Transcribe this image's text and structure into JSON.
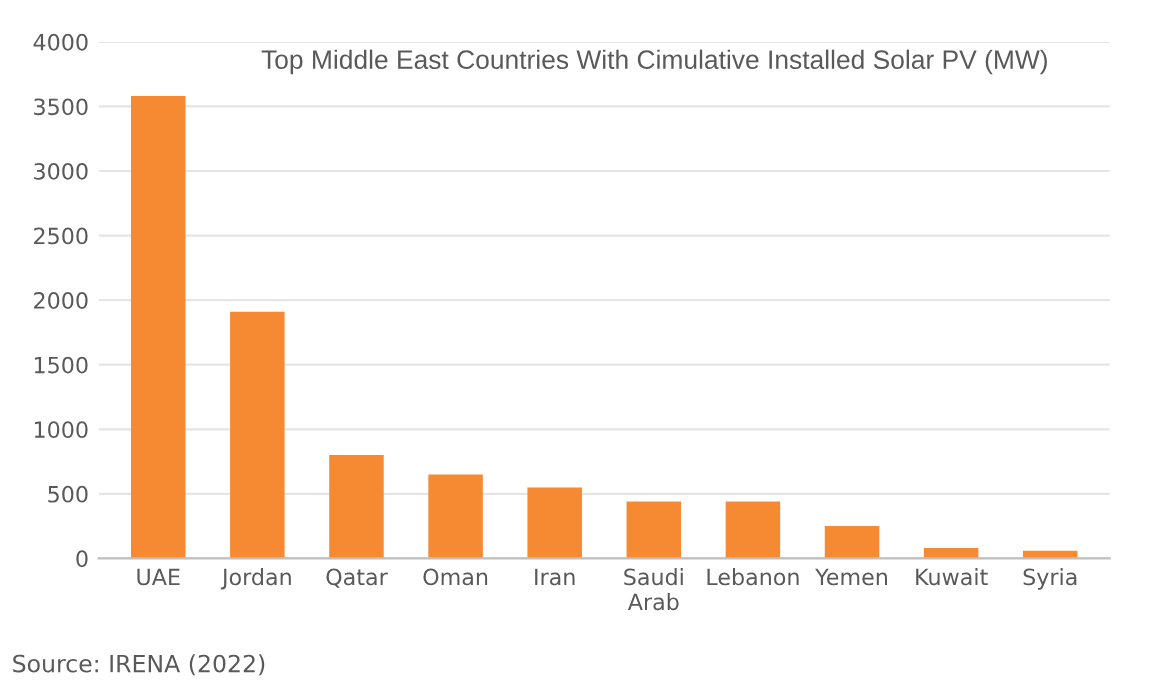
{
  "chart_data": {
    "type": "bar",
    "title": "Top Middle East Countries With Cimulative Installed Solar PV (MW)",
    "categories": [
      "UAE",
      "Jordan",
      "Qatar",
      "Oman",
      "Iran",
      "Saudi\nArab",
      "Lebanon",
      "Yemen",
      "Kuwait",
      "Syria"
    ],
    "values": [
      3580,
      1910,
      800,
      650,
      550,
      440,
      440,
      250,
      80,
      60
    ],
    "color": "#f58a32",
    "ylim": [
      0,
      4000
    ],
    "yticks": [
      0,
      500,
      1000,
      1500,
      2000,
      2500,
      3000,
      3500,
      4000
    ],
    "grid": "y",
    "annotations": [
      "Source: IRENA (2022)"
    ]
  }
}
